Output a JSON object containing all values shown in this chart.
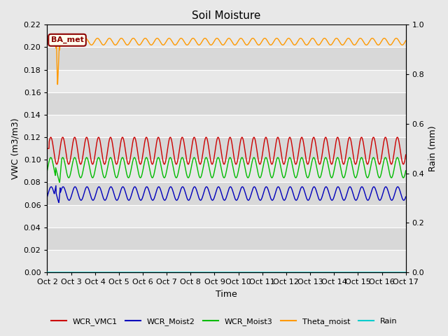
{
  "title": "Soil Moisture",
  "ylabel_left": "VWC (m3/m3)",
  "ylabel_right": "Rain (mm)",
  "xlabel": "Time",
  "xlim": [
    0,
    15
  ],
  "ylim_left": [
    0.0,
    0.22
  ],
  "ylim_right": [
    0.0,
    1.0
  ],
  "xtick_labels": [
    "Oct 2",
    "Oct 3",
    "Oct 4",
    "Oct 5",
    "Oct 6",
    "Oct 7",
    "Oct 8",
    "Oct 9",
    "Oct 10",
    "Oct 11",
    "Oct 12",
    "Oct 13",
    "Oct 14",
    "Oct 15",
    "Oct 16",
    "Oct 17"
  ],
  "yticks_left": [
    0.0,
    0.02,
    0.04,
    0.06,
    0.08,
    0.1,
    0.12,
    0.14,
    0.16,
    0.18,
    0.2,
    0.22
  ],
  "yticks_right": [
    0.0,
    0.2,
    0.4,
    0.6,
    0.8,
    1.0
  ],
  "fig_bg": "#e8e8e8",
  "plot_bg": "#d8d8d8",
  "band_colors": [
    "#e8e8e8",
    "#d8d8d8"
  ],
  "annotation_text": "BA_met",
  "annotation_fg": "#8b0000",
  "annotation_bg": "#fffff0",
  "line_colors": {
    "WCR_VMC1": "#cc0000",
    "WCR_Moist2": "#0000bb",
    "WCR_Moist3": "#00bb00",
    "Theta_moist": "#ff9900",
    "Rain": "#00cccc"
  },
  "legend_labels": [
    "WCR_VMC1",
    "WCR_Moist2",
    "WCR_Moist3",
    "Theta_moist",
    "Rain"
  ]
}
